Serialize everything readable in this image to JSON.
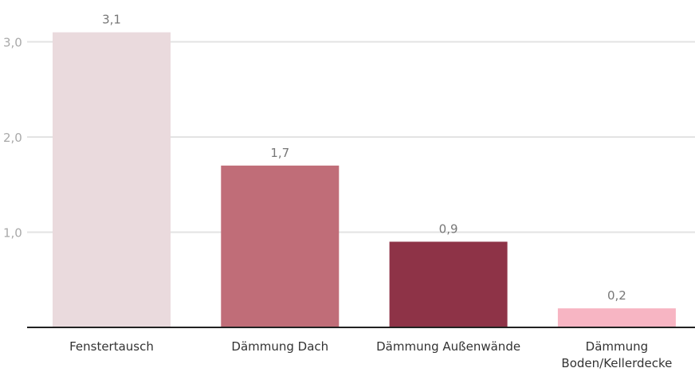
{
  "chart_data": {
    "type": "bar",
    "categories": [
      [
        "Fenstertausch"
      ],
      [
        "Dämmung Dach"
      ],
      [
        "Dämmung Außenwände"
      ],
      [
        "Dämmung",
        "Boden/Kellerdecke"
      ]
    ],
    "values": [
      3.1,
      1.7,
      0.9,
      0.2
    ],
    "value_labels": [
      "3,1",
      "1,7",
      "0,9",
      "0,2"
    ],
    "colors": [
      "#eadadd",
      "#c06d78",
      "#8e3347",
      "#f7b5c3"
    ],
    "yticks": [
      1.0,
      2.0,
      3.0
    ],
    "ytick_labels": [
      "1,0",
      "2,0",
      "3,0"
    ],
    "ylim": [
      0,
      3.2
    ],
    "grid": true,
    "title": "",
    "xlabel": "",
    "ylabel": ""
  }
}
